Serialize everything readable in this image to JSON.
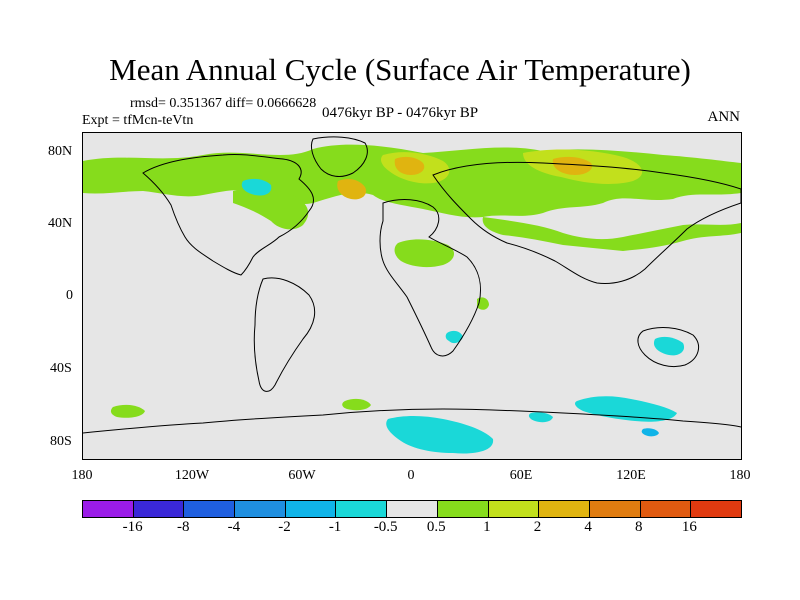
{
  "header": {
    "title": "Mean Annual Cycle (Surface Air Temperature)",
    "stats": "rmsd= 0.351367 diff= 0.0666628",
    "experiment": "Expt = tfMcn-teVtn",
    "period": "0476kyr BP - 0476kyr BP",
    "season": "ANN"
  },
  "axes": {
    "lat_labels": [
      "80N",
      "40N",
      "0",
      "40S",
      "80S"
    ],
    "lon_labels": [
      "180",
      "120W",
      "60W",
      "0",
      "60E",
      "120E",
      "180"
    ]
  },
  "colorbar": {
    "labels": [
      "-16",
      "-8",
      "-4",
      "-2",
      "-1",
      "-0.5",
      "0.5",
      "1",
      "2",
      "4",
      "8",
      "16"
    ],
    "colors": [
      "#9b1ce8",
      "#3a28d8",
      "#1f5fe0",
      "#1f8fe0",
      "#10b4e8",
      "#1ad8d8",
      "#e6e6e6",
      "#86dc1c",
      "#c2e01c",
      "#e0b410",
      "#e07c10",
      "#e05a10",
      "#e03a10"
    ]
  },
  "map_colors": {
    "background": "#e6e6e6",
    "land_outline": "#000000",
    "positive_small": "#86dc1c",
    "positive_medium": "#c2e01c",
    "positive_large": "#e0b410",
    "negative_small": "#1ad8d8",
    "negative_medium": "#10b4e8"
  }
}
